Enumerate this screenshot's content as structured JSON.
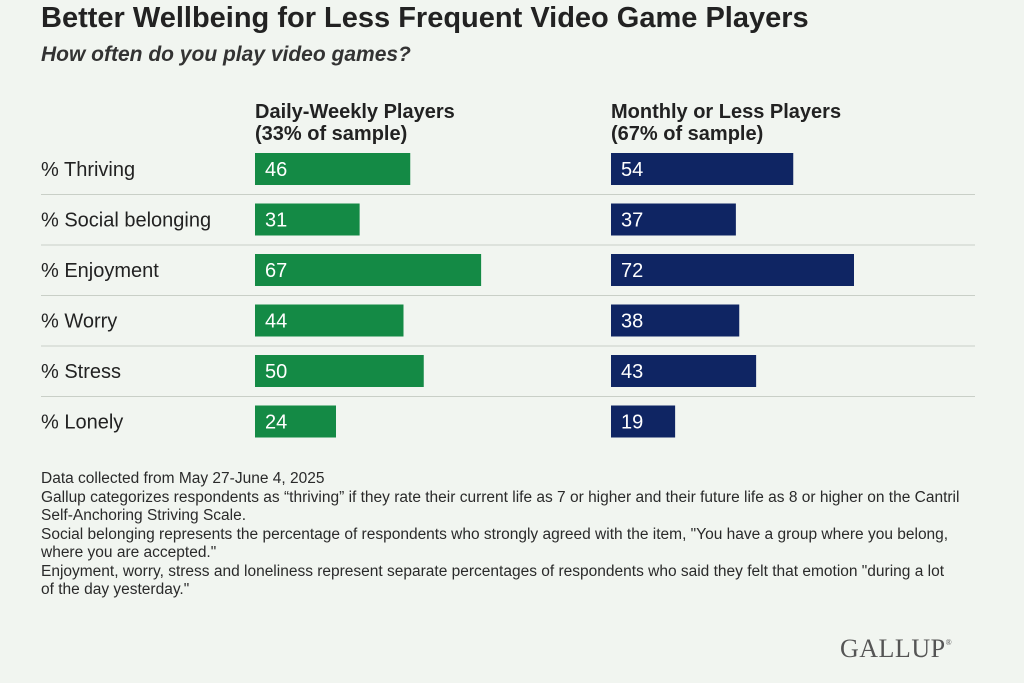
{
  "header": {
    "title": "Better Wellbeing for Less Frequent Video Game Players",
    "subtitle": "How often do you play video games?"
  },
  "colors": {
    "background": "#f1f5f0",
    "daily_weekly": "#148a45",
    "monthly_or_less": "#0f2563",
    "gridline": "#c9cfc7",
    "bar_label": "#ffffff"
  },
  "chart_data": {
    "type": "bar",
    "orientation": "horizontal",
    "title": "Better Wellbeing for Less Frequent Video Game Players",
    "subtitle": "How often do you play video games?",
    "categories": [
      "% Thriving",
      "% Social belonging",
      "% Enjoyment",
      "% Worry",
      "% Stress",
      "% Lonely"
    ],
    "series": [
      {
        "name": "Daily-Weekly Players",
        "subname": "(33% of sample)",
        "color": "#148a45",
        "values": [
          46,
          31,
          67,
          44,
          50,
          24
        ]
      },
      {
        "name": "Monthly or Less Players",
        "subname": "(67% of sample)",
        "color": "#0f2563",
        "values": [
          54,
          37,
          72,
          38,
          43,
          19
        ]
      }
    ],
    "xlim": [
      0,
      100
    ],
    "grid": "horizontal separators",
    "legend": "column headers"
  },
  "notes": [
    "Data collected from May 27-June 4, 2025",
    "Gallup categorizes respondents as “thriving” if they rate their current life as 7 or higher and their future life as 8 or higher on the Cantril Self-Anchoring Striving Scale.",
    "Social belonging represents the percentage of respondents who strongly agreed with the item, \"You have a group where you belong, where you are accepted.\"",
    "Enjoyment, worry, stress and loneliness represent separate percentages of respondents who said they felt that emotion \"during a lot of the day yesterday.\""
  ],
  "logo": {
    "text": "GALLUP",
    "mark": "®"
  }
}
